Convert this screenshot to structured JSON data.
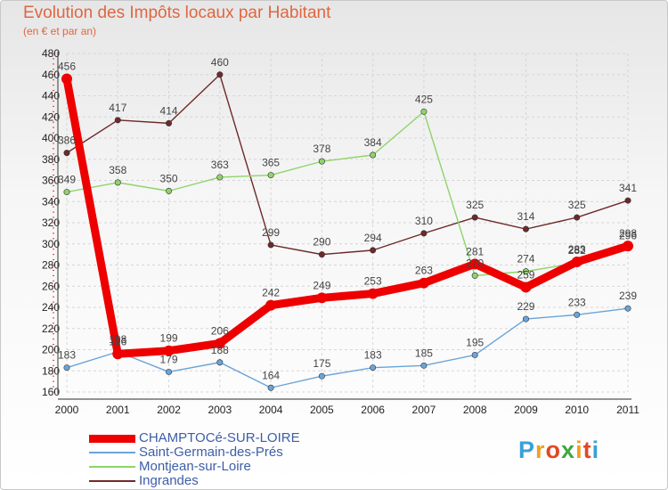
{
  "title": "Evolution des Impôts locaux par Habitant",
  "subtitle": "(en € et par an)",
  "logo": {
    "letters": [
      "P",
      "r",
      "o",
      "x",
      "i",
      "t",
      "i"
    ],
    "colors": [
      "#3aa0d8",
      "#f0a020",
      "#e04828",
      "#40a840",
      "#f0a020",
      "#e04828",
      "#3aa0d8"
    ]
  },
  "chart_data": {
    "type": "line",
    "categories": [
      "2000",
      "2001",
      "2002",
      "2003",
      "2004",
      "2005",
      "2006",
      "2007",
      "2008",
      "2009",
      "2010",
      "2011"
    ],
    "ylim": [
      160,
      480
    ],
    "yticks": [
      160,
      180,
      200,
      220,
      240,
      260,
      280,
      300,
      320,
      340,
      360,
      380,
      400,
      420,
      440,
      460,
      480
    ],
    "grid": true,
    "legend_position": "bottom-left",
    "series": [
      {
        "name": "Ingrandes",
        "color": "#6e2a2a",
        "values": [
          386,
          417,
          414,
          460,
          299,
          290,
          294,
          310,
          325,
          314,
          325,
          341
        ]
      },
      {
        "name": "Montjean-sur-Loire",
        "color": "#8fd46a",
        "values": [
          349,
          358,
          350,
          363,
          365,
          378,
          384,
          425,
          270,
          274,
          282,
          296
        ]
      },
      {
        "name": "Saint-Germain-des-Prés",
        "color": "#6aa4d8",
        "values": [
          183,
          198,
          179,
          188,
          164,
          175,
          183,
          185,
          195,
          229,
          233,
          239
        ]
      },
      {
        "name": "CHAMPTOCé-SUR-LOIRE",
        "color": "#ee0000",
        "values": [
          456,
          196,
          199,
          206,
          242,
          249,
          253,
          263,
          281,
          259,
          283,
          298
        ]
      }
    ],
    "legend_order": [
      "CHAMPTOCé-SUR-LOIRE",
      "Saint-Germain-des-Prés",
      "Montjean-sur-Loire",
      "Ingrandes"
    ]
  }
}
